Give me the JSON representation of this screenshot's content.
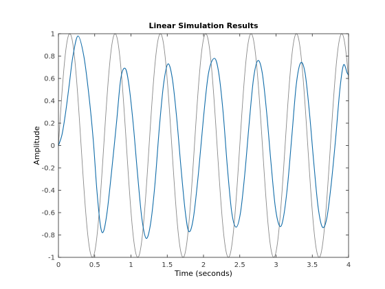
{
  "chart_data": {
    "type": "line",
    "title": "Linear Simulation Results",
    "xlabel": "Time (seconds)",
    "ylabel": "Amplitude",
    "xlim": [
      0,
      4
    ],
    "ylim": [
      -1,
      1
    ],
    "x_ticks": [
      "0",
      "0.5",
      "1",
      "1.5",
      "2",
      "2.5",
      "3",
      "3.5",
      "4"
    ],
    "y_ticks": [
      "1",
      "0.8",
      "0.6",
      "0.4",
      "0.2",
      "0",
      "-0.2",
      "-0.4",
      "-0.6",
      "-0.8",
      "-1"
    ],
    "grid": false,
    "box": true,
    "series": [
      {
        "role": "input",
        "color": "#888888",
        "function": "sin",
        "frequency_hz": 1.6,
        "amplitude": 1,
        "x_range": [
          0,
          4
        ]
      },
      {
        "role": "output",
        "color": "#0f6ba8",
        "points": [
          [
            0.0,
            0.0
          ],
          [
            0.05,
            0.1
          ],
          [
            0.1,
            0.3
          ],
          [
            0.15,
            0.55
          ],
          [
            0.2,
            0.8
          ],
          [
            0.27,
            0.98
          ],
          [
            0.35,
            0.8
          ],
          [
            0.42,
            0.45
          ],
          [
            0.48,
            0.05
          ],
          [
            0.53,
            -0.4
          ],
          [
            0.58,
            -0.72
          ],
          [
            0.62,
            -0.77
          ],
          [
            0.67,
            -0.6
          ],
          [
            0.73,
            -0.25
          ],
          [
            0.8,
            0.2
          ],
          [
            0.86,
            0.6
          ],
          [
            0.92,
            0.69
          ],
          [
            0.97,
            0.55
          ],
          [
            1.03,
            0.2
          ],
          [
            1.09,
            -0.25
          ],
          [
            1.15,
            -0.65
          ],
          [
            1.21,
            -0.83
          ],
          [
            1.27,
            -0.7
          ],
          [
            1.33,
            -0.35
          ],
          [
            1.39,
            0.15
          ],
          [
            1.45,
            0.55
          ],
          [
            1.51,
            0.73
          ],
          [
            1.57,
            0.6
          ],
          [
            1.63,
            0.25
          ],
          [
            1.69,
            -0.2
          ],
          [
            1.75,
            -0.6
          ],
          [
            1.8,
            -0.77
          ],
          [
            1.86,
            -0.65
          ],
          [
            1.93,
            -0.25
          ],
          [
            2.0,
            0.25
          ],
          [
            2.07,
            0.65
          ],
          [
            2.15,
            0.78
          ],
          [
            2.21,
            0.65
          ],
          [
            2.27,
            0.3
          ],
          [
            2.33,
            -0.2
          ],
          [
            2.39,
            -0.6
          ],
          [
            2.45,
            -0.73
          ],
          [
            2.51,
            -0.6
          ],
          [
            2.57,
            -0.25
          ],
          [
            2.63,
            0.2
          ],
          [
            2.69,
            0.6
          ],
          [
            2.75,
            0.76
          ],
          [
            2.81,
            0.65
          ],
          [
            2.87,
            0.3
          ],
          [
            2.93,
            -0.15
          ],
          [
            2.99,
            -0.55
          ],
          [
            3.05,
            -0.72
          ],
          [
            3.1,
            -0.65
          ],
          [
            3.16,
            -0.35
          ],
          [
            3.22,
            0.1
          ],
          [
            3.28,
            0.55
          ],
          [
            3.34,
            0.74
          ],
          [
            3.4,
            0.65
          ],
          [
            3.46,
            0.3
          ],
          [
            3.52,
            -0.15
          ],
          [
            3.58,
            -0.55
          ],
          [
            3.64,
            -0.73
          ],
          [
            3.7,
            -0.65
          ],
          [
            3.76,
            -0.35
          ],
          [
            3.82,
            0.05
          ],
          [
            3.88,
            0.5
          ],
          [
            3.93,
            0.72
          ],
          [
            3.98,
            0.65
          ],
          [
            4.0,
            0.63
          ]
        ]
      }
    ]
  }
}
